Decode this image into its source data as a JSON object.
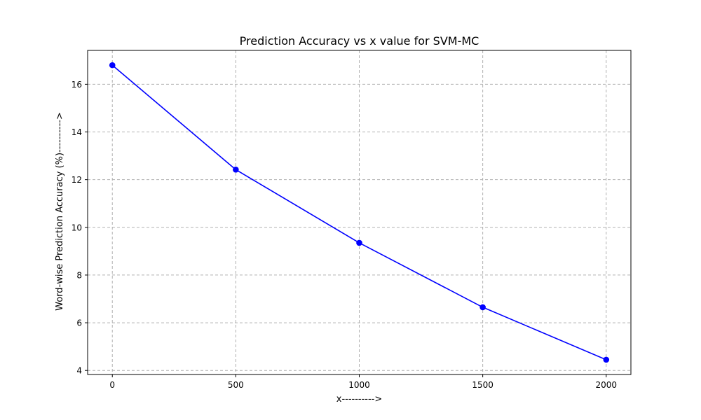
{
  "chart_data": {
    "type": "line",
    "title": "Prediction Accuracy vs x value for SVM-MC",
    "xlabel": "x---------->",
    "ylabel": "Word-wise Prediction Accuracy (%)---------->",
    "x": [
      0,
      500,
      1000,
      1500,
      2000
    ],
    "series": [
      {
        "values": [
          16.8,
          12.42,
          9.35,
          6.65,
          4.45
        ],
        "color": "#0000ff",
        "marker": "circle"
      }
    ],
    "xlim": [
      -100,
      2100
    ],
    "ylim": [
      3.83,
      17.42
    ],
    "xticks": [
      0,
      500,
      1000,
      1500,
      2000
    ],
    "xtick_labels": [
      "0",
      "500",
      "1000",
      "1500",
      "2000"
    ],
    "yticks": [
      4,
      6,
      8,
      10,
      12,
      14,
      16
    ],
    "ytick_labels": [
      "4",
      "6",
      "8",
      "10",
      "12",
      "14",
      "16"
    ],
    "grid": true,
    "grid_style": "dashed",
    "grid_color": "#b0b0b0",
    "axis_color": "#000000"
  }
}
